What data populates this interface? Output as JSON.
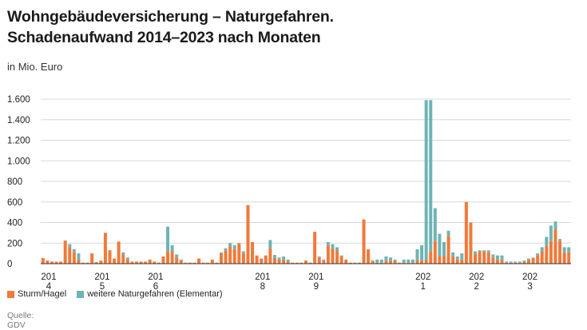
{
  "title_line1": "Wohngebäudeversicherung – Naturgefahren.",
  "title_line2": "Schadenaufwand 2014–2023 nach Monaten",
  "unit_label": "in Mio. Euro",
  "source_label": "Quelle:",
  "source_value": "GDV",
  "colors": {
    "sturm": "#f07a3a",
    "elementar": "#6fb4b4",
    "grid": "#d8d8d8",
    "axis": "#333333"
  },
  "chart_data": {
    "type": "bar",
    "stacked": true,
    "ylim": [
      0,
      1600
    ],
    "yticks": [
      0,
      200,
      400,
      600,
      800,
      1000,
      1200,
      1400,
      1600
    ],
    "ytick_labels": [
      "0",
      "200",
      "400",
      "600",
      "800",
      "1.000",
      "1.200",
      "1.400",
      "1.600"
    ],
    "year_labels": [
      {
        "top": "201",
        "bottom": "4"
      },
      {
        "top": "201",
        "bottom": "5"
      },
      {
        "top": "201",
        "bottom": "6"
      },
      {
        "top": "201",
        "bottom": "8"
      },
      {
        "top": "201",
        "bottom": "9"
      },
      {
        "top": "202",
        "bottom": "1"
      },
      {
        "top": "202",
        "bottom": "2"
      },
      {
        "top": "202",
        "bottom": "3"
      }
    ],
    "year_label_months": [
      0,
      12,
      24,
      48,
      60,
      84,
      96,
      108
    ],
    "series": [
      {
        "name": "Sturm/Hagel",
        "values": [
          55,
          30,
          20,
          20,
          20,
          225,
          160,
          110,
          40,
          10,
          10,
          100,
          15,
          30,
          300,
          130,
          50,
          215,
          90,
          40,
          20,
          20,
          20,
          20,
          40,
          20,
          10,
          70,
          120,
          120,
          60,
          30,
          10,
          10,
          10,
          50,
          10,
          10,
          40,
          10,
          100,
          130,
          170,
          140,
          200,
          100,
          570,
          210,
          80,
          50,
          80,
          150,
          55,
          40,
          40,
          20,
          10,
          10,
          10,
          30,
          10,
          310,
          60,
          30,
          180,
          150,
          120,
          70,
          40,
          10,
          10,
          10,
          430,
          140,
          30,
          10,
          10,
          30,
          30,
          30,
          10,
          10,
          10,
          10,
          40,
          30,
          40,
          120,
          220,
          70,
          70,
          270,
          70,
          40,
          40,
          600,
          400,
          90,
          120,
          120,
          110,
          60,
          40,
          40,
          10,
          10,
          10,
          10,
          20,
          40,
          50,
          80,
          120,
          170,
          220,
          330,
          220,
          110,
          110
        ]
      },
      {
        "name": "weitere Naturgefahren (Elementar)",
        "values": [
          0,
          0,
          0,
          0,
          0,
          0,
          30,
          30,
          60,
          0,
          0,
          0,
          0,
          0,
          0,
          0,
          0,
          0,
          20,
          20,
          0,
          0,
          0,
          0,
          0,
          0,
          0,
          0,
          240,
          60,
          30,
          10,
          0,
          0,
          0,
          0,
          0,
          0,
          0,
          0,
          10,
          20,
          30,
          40,
          0,
          20,
          0,
          0,
          0,
          0,
          0,
          80,
          30,
          20,
          30,
          20,
          0,
          0,
          0,
          0,
          0,
          0,
          10,
          10,
          30,
          40,
          40,
          10,
          0,
          0,
          0,
          0,
          0,
          0,
          0,
          30,
          30,
          40,
          30,
          10,
          0,
          30,
          30,
          30,
          100,
          150,
          1550,
          1470,
          320,
          220,
          140,
          50,
          40,
          30,
          60,
          0,
          0,
          30,
          10,
          10,
          20,
          30,
          40,
          40,
          10,
          10,
          10,
          10,
          10,
          10,
          10,
          20,
          40,
          90,
          150,
          80,
          20,
          50,
          50
        ]
      }
    ]
  }
}
